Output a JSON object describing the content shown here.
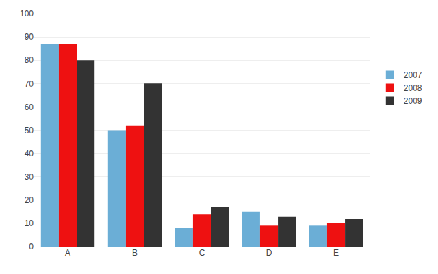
{
  "chart_data": {
    "type": "bar",
    "categories": [
      "A",
      "B",
      "C",
      "D",
      "E"
    ],
    "series": [
      {
        "name": "2007",
        "color": "#6BAED6",
        "values": [
          87,
          50,
          8,
          15,
          9
        ]
      },
      {
        "name": "2008",
        "color": "#EE1111",
        "values": [
          87,
          52,
          14,
          9,
          10
        ]
      },
      {
        "name": "2009",
        "color": "#333333",
        "values": [
          80,
          70,
          17,
          13,
          12
        ]
      }
    ],
    "ylim": [
      0,
      100
    ],
    "yticks": [
      0,
      10,
      20,
      30,
      40,
      50,
      60,
      70,
      80,
      90,
      100
    ],
    "grid": true,
    "legend": "right"
  }
}
